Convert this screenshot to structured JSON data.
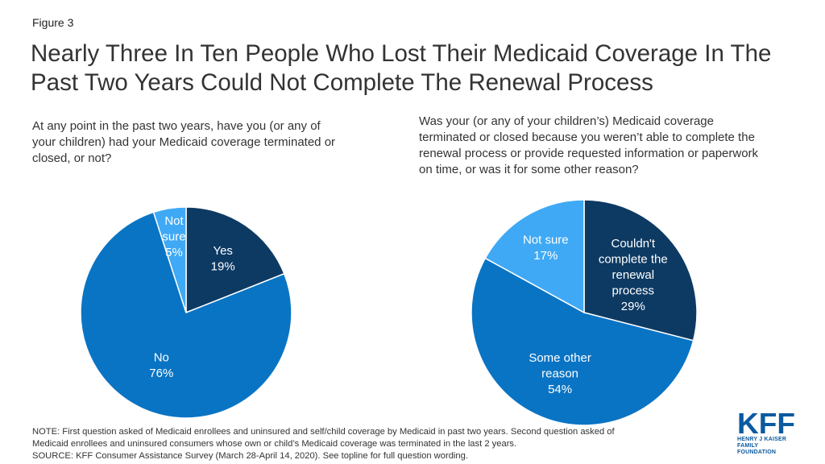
{
  "figure_label": "Figure 3",
  "title": "Nearly Three In Ten People Who Lost Their Medicaid Coverage In The Past Two Years Could Not Complete The Renewal Process",
  "chart_data": [
    {
      "type": "pie",
      "question": "At any point in the past two years, have you (or any of your children) had your Medicaid coverage terminated or closed, or not?",
      "slices": [
        {
          "label": [
            "Yes"
          ],
          "value": 19,
          "display": "19%",
          "color": "#0d3a63",
          "label_color": "#ffffff"
        },
        {
          "label": [
            "No"
          ],
          "value": 76,
          "display": "76%",
          "color": "#0a74c4",
          "label_color": "#ffffff"
        },
        {
          "label": [
            "Not",
            "sure"
          ],
          "value": 5,
          "display": "5%",
          "color": "#3fa9f5",
          "label_color": "#ffffff"
        }
      ]
    },
    {
      "type": "pie",
      "question": "Was your (or any of your children’s) Medicaid coverage terminated or closed because you weren’t able to complete the renewal process or provide requested information or paperwork on time, or was it for some other reason?",
      "slices": [
        {
          "label": [
            "Couldn't",
            "complete the",
            "renewal",
            "process"
          ],
          "value": 29,
          "display": "29%",
          "color": "#0d3a63",
          "label_color": "#ffffff"
        },
        {
          "label": [
            "Some other",
            "reason"
          ],
          "value": 54,
          "display": "54%",
          "color": "#0a74c4",
          "label_color": "#ffffff"
        },
        {
          "label": [
            "Not sure"
          ],
          "value": 17,
          "display": "17%",
          "color": "#3fa9f5",
          "label_color": "#ffffff"
        }
      ]
    }
  ],
  "notes": [
    "NOTE: First question asked of Medicaid enrollees and uninsured and self/child coverage by Medicaid in past two years. Second question asked of",
    "Medicaid enrollees and uninsured consumers whose own or child’s Medicaid coverage was terminated in the last 2 years.",
    "SOURCE: KFF Consumer Assistance Survey (March 28-April 14, 2020). See topline for full question wording."
  ],
  "logo": {
    "text": "KFF",
    "subtext": [
      "HENRY J KAISER",
      "FAMILY FOUNDATION"
    ],
    "color": "#0a5aa0"
  }
}
